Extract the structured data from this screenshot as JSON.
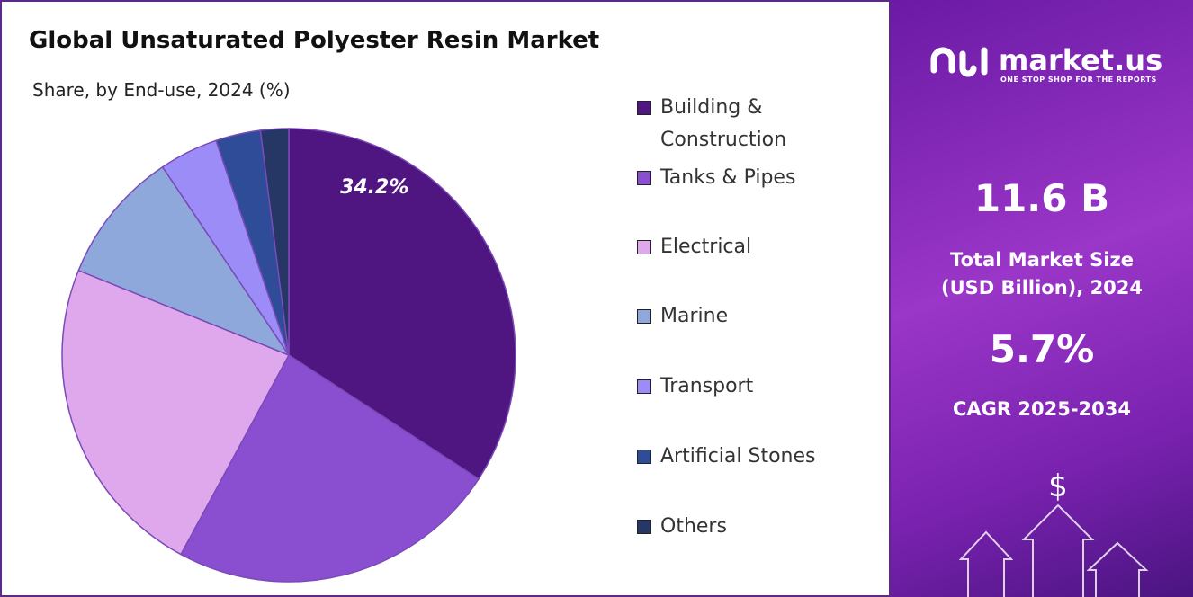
{
  "chart_data": {
    "type": "pie",
    "title": "Global Unsaturated Polyester Resin Market",
    "subtitle": "Share, by End-use, 2024 (%)",
    "categories": [
      "Building & Construction",
      "Tanks & Pipes",
      "Electrical",
      "Marine",
      "Transport",
      "Artificial Stones",
      "Others"
    ],
    "values": [
      34.2,
      23.7,
      23.2,
      9.5,
      4.2,
      3.2,
      2.0
    ],
    "value_labels": [
      "34.2%",
      null,
      null,
      null,
      null,
      null,
      null
    ],
    "colors": [
      "#4f1580",
      "#8a4fd0",
      "#e0a8ec",
      "#8ea8dc",
      "#9b8cf7",
      "#2f4c98",
      "#263766"
    ],
    "legend": "right"
  },
  "sidebar": {
    "brand": "market.us",
    "tagline": "ONE STOP SHOP FOR THE REPORTS",
    "market_size": "11.6 B",
    "market_size_label": "Total Market Size (USD Billion), 2024",
    "cagr": "5.7%",
    "cagr_label": "CAGR 2025-2034"
  }
}
